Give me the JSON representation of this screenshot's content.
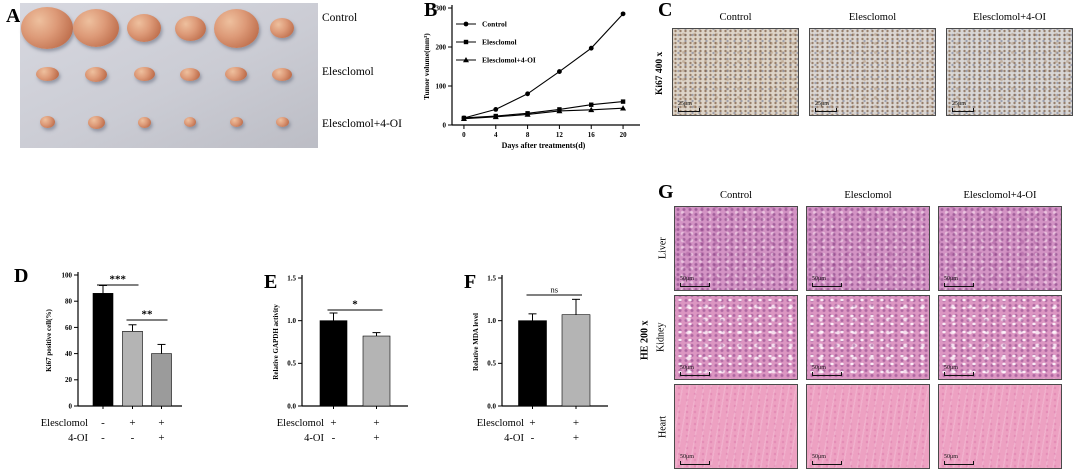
{
  "figure": {
    "panels": {
      "A": {
        "label": "A",
        "tumor_color": "#c97a5a",
        "rows": [
          {
            "label": "Control",
            "tumor_count": 6,
            "sizes": [
              [
                52,
                42
              ],
              [
                46,
                38
              ],
              [
                34,
                28
              ],
              [
                31,
                25
              ],
              [
                45,
                39
              ],
              [
                24,
                20
              ]
            ]
          },
          {
            "label": "Elesclomol",
            "tumor_count": 6,
            "sizes": [
              [
                23,
                14
              ],
              [
                22,
                15
              ],
              [
                21,
                14
              ],
              [
                20,
                13
              ],
              [
                22,
                14
              ],
              [
                20,
                13
              ]
            ]
          },
          {
            "label": "Elesclomol+4-OI",
            "tumor_count": 6,
            "sizes": [
              [
                15,
                12
              ],
              [
                17,
                13
              ],
              [
                13,
                11
              ],
              [
                12,
                10
              ],
              [
                13,
                10
              ],
              [
                13,
                10
              ]
            ]
          }
        ]
      },
      "B": {
        "label": "B"
      },
      "C": {
        "label": "C",
        "row_label": "Ki67 400 x",
        "columns": [
          "Control",
          "Elesclomol",
          "Elesclomol+4-OI"
        ],
        "scale_bar": "25μm",
        "tissue_colors": [
          "#ddd4c8",
          "#dbd6d2",
          "#d8d6d5"
        ]
      },
      "D": {
        "label": "D"
      },
      "E": {
        "label": "E"
      },
      "F": {
        "label": "F"
      },
      "G": {
        "label": "G",
        "row_label": "HE 200 x",
        "columns": [
          "Control",
          "Elesclomol",
          "Elesclomol+4-OI"
        ],
        "rows": [
          {
            "label": "Liver",
            "color": "#d393c4"
          },
          {
            "label": "Kidney",
            "color": "#dc96c2"
          },
          {
            "label": "Heart",
            "color": "#eda1c2"
          }
        ],
        "scale_bar": "50μm"
      }
    }
  },
  "chart_data": [
    {
      "id": "B",
      "type": "line",
      "title": "",
      "xlabel": "Days after treatments(d)",
      "ylabel": "Tumor volume(mm³)",
      "x": [
        0,
        4,
        8,
        12,
        16,
        20
      ],
      "xlim": [
        -1.5,
        21.5
      ],
      "ylim": [
        0,
        300
      ],
      "yticks": [
        0,
        100,
        200,
        300
      ],
      "grid": false,
      "legend_position": "upper-left",
      "line_color": "#000000",
      "series": [
        {
          "name": "Control",
          "marker": "circle",
          "values": [
            18,
            40,
            80,
            137,
            197,
            285
          ]
        },
        {
          "name": "Elesclomol",
          "marker": "square",
          "values": [
            18,
            23,
            30,
            40,
            52,
            60
          ]
        },
        {
          "name": "Elesclomol+4-OI",
          "marker": "triangle",
          "values": [
            16,
            21,
            27,
            36,
            39,
            43
          ]
        }
      ]
    },
    {
      "id": "D",
      "type": "bar",
      "ylabel": "Ki67 positive cell(%)",
      "ylim": [
        0,
        100
      ],
      "ytick_labels": [
        "0",
        "20",
        "40",
        "60",
        "80",
        "100"
      ],
      "values": [
        86,
        57,
        40
      ],
      "errors": [
        6,
        5,
        7
      ],
      "bar_colors": [
        "#000000",
        "#b4b4b4",
        "#9b9b9b"
      ],
      "x_matrix": [
        {
          "label": "Elesclomol",
          "signs": [
            "-",
            "+",
            "+"
          ]
        },
        {
          "label": "4-OI",
          "signs": [
            "-",
            "-",
            "+"
          ]
        }
      ],
      "significance": [
        {
          "between": [
            0,
            1
          ],
          "label": "***"
        },
        {
          "between": [
            1,
            2
          ],
          "label": "**"
        }
      ]
    },
    {
      "id": "E",
      "type": "bar",
      "ylabel": "Relative GAPDH activity",
      "ylim": [
        0,
        1.5
      ],
      "ytick_labels": [
        "0.0",
        "0.5",
        "1.0",
        "1.5"
      ],
      "values": [
        1.0,
        0.82
      ],
      "errors": [
        0.09,
        0.04
      ],
      "bar_colors": [
        "#000000",
        "#b4b4b4"
      ],
      "x_matrix": [
        {
          "label": "Elesclomol",
          "signs": [
            "+",
            "+"
          ]
        },
        {
          "label": "4-OI",
          "signs": [
            "-",
            "+"
          ]
        }
      ],
      "significance": [
        {
          "between": [
            0,
            1
          ],
          "label": "*"
        }
      ]
    },
    {
      "id": "F",
      "type": "bar",
      "ylabel": "Relative MDA level",
      "ylim": [
        0,
        1.5
      ],
      "ytick_labels": [
        "0.0",
        "0.5",
        "1.0",
        "1.5"
      ],
      "values": [
        1.0,
        1.07
      ],
      "errors": [
        0.08,
        0.18
      ],
      "bar_colors": [
        "#000000",
        "#b4b4b4"
      ],
      "x_matrix": [
        {
          "label": "Elesclomol",
          "signs": [
            "+",
            "+"
          ]
        },
        {
          "label": "4-OI",
          "signs": [
            "-",
            "+"
          ]
        }
      ],
      "significance": [
        {
          "between": [
            0,
            1
          ],
          "label": "ns"
        }
      ]
    }
  ]
}
